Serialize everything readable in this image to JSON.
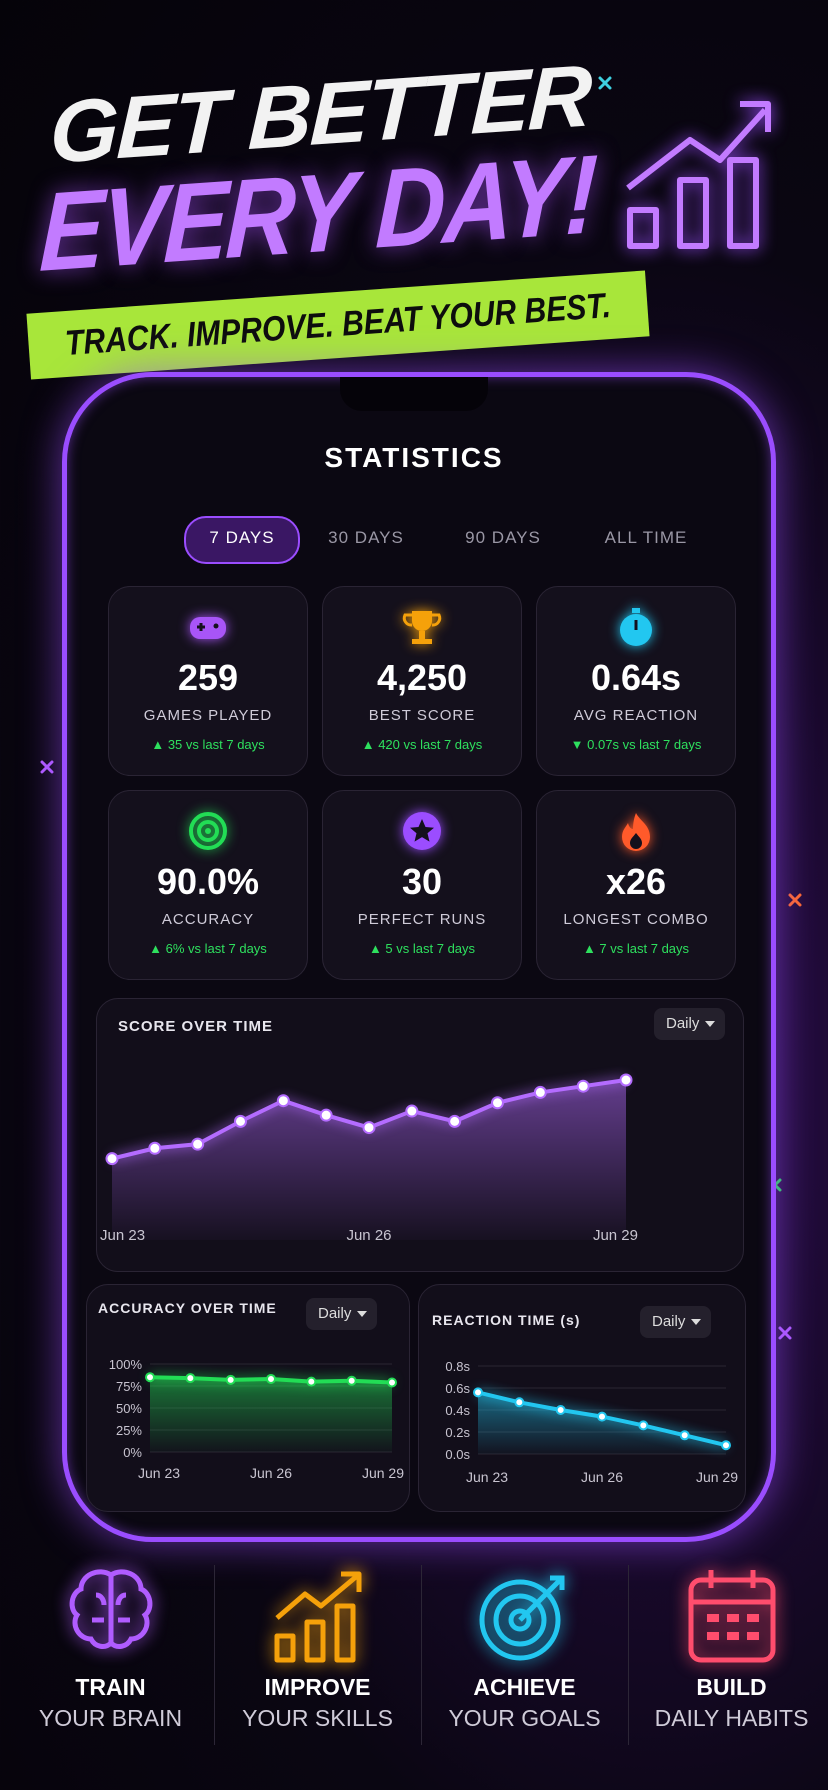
{
  "header": {
    "title_line1": "GET BETTER",
    "title_line2": "EVERY DAY!",
    "tagline": "TRACK. IMPROVE. BEAT YOUR BEST."
  },
  "screen": {
    "title": "STATISTICS",
    "tabs": [
      "7 DAYS",
      "30 DAYS",
      "90 DAYS",
      "ALL TIME"
    ],
    "active_tab": 0,
    "stats": [
      {
        "value": "259",
        "label": "GAMES PLAYED",
        "change": "▲ 35 vs last 7 days",
        "color": "#a855f7"
      },
      {
        "value": "4,250",
        "label": "BEST SCORE",
        "change": "▲ 420 vs last 7 days",
        "color": "#f5a10a"
      },
      {
        "value": "0.64s",
        "label": "AVG REACTION",
        "change": "▼ 0.07s vs last 7 days",
        "color": "#22c7f0"
      },
      {
        "value": "90.0%",
        "label": "ACCURACY",
        "change": "▲ 6% vs last 7 days",
        "color": "#22dd55"
      },
      {
        "value": "30",
        "label": "PERFECT RUNS",
        "change": "▲ 5 vs last 7 days",
        "color": "#9b4dff"
      },
      {
        "value": "x26",
        "label": "LONGEST COMBO",
        "change": "▲ 7 vs last 7 days",
        "color": "#ff5a2a"
      }
    ]
  },
  "chart_data": [
    {
      "type": "area",
      "title": "SCORE OVER TIME",
      "period": "Daily",
      "color": "#b46cff",
      "categories": [
        "Jun 23",
        null,
        null,
        null,
        null,
        null,
        "Jun 26",
        null,
        null,
        null,
        null,
        null,
        "Jun 29"
      ],
      "values": [
        20,
        25,
        27,
        38,
        48,
        41,
        35,
        43,
        38,
        47,
        52,
        55,
        58
      ]
    },
    {
      "type": "area",
      "title": "ACCURACY OVER TIME",
      "period": "Daily",
      "color": "#22dd55",
      "categories": [
        "Jun 23",
        null,
        null,
        "Jun 26",
        null,
        null,
        "Jun 29"
      ],
      "values": [
        85,
        84,
        82,
        83,
        80,
        81,
        79
      ],
      "ylim": [
        0,
        100
      ],
      "yticks": [
        {
          "value": 0,
          "label": "0%"
        },
        {
          "value": 25,
          "label": "25%"
        },
        {
          "value": 50,
          "label": "50%"
        },
        {
          "value": 75,
          "label": "75%"
        },
        {
          "value": 100,
          "label": "100%"
        }
      ]
    },
    {
      "type": "area",
      "title": "REACTION TIME (s)",
      "period": "Daily",
      "color": "#22c7f0",
      "categories": [
        "Jun 23",
        null,
        null,
        "Jun 26",
        null,
        null,
        "Jun 29"
      ],
      "values": [
        0.56,
        0.47,
        0.4,
        0.34,
        0.26,
        0.17,
        0.08
      ],
      "ylim": [
        0,
        0.8
      ],
      "yticks": [
        {
          "value": 0,
          "label": "0.0s"
        },
        {
          "value": 0.2,
          "label": "0.2s"
        },
        {
          "value": 0.4,
          "label": "0.4s"
        },
        {
          "value": 0.6,
          "label": "0.6s"
        },
        {
          "value": 0.8,
          "label": "0.8s"
        }
      ]
    }
  ],
  "features": [
    {
      "line1": "TRAIN",
      "line2": "YOUR BRAIN",
      "color": "#b05cff"
    },
    {
      "line1": "IMPROVE",
      "line2": "YOUR SKILLS",
      "color": "#f5a10a"
    },
    {
      "line1": "ACHIEVE",
      "line2": "YOUR GOALS",
      "color": "#22c7f0"
    },
    {
      "line1": "BUILD",
      "line2": "DAILY HABITS",
      "color": "#ff4d6d"
    }
  ]
}
